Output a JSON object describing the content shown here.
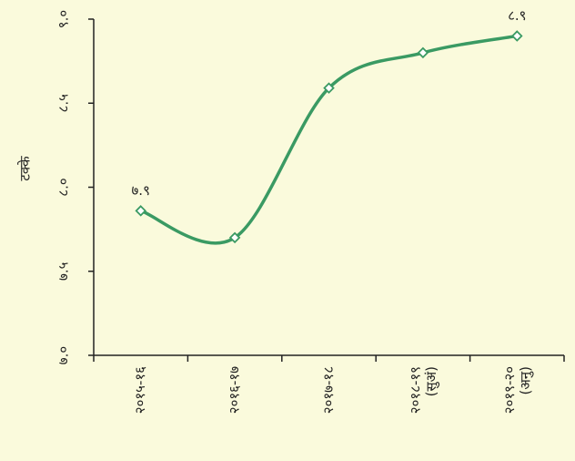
{
  "chart_data": {
    "type": "line",
    "ylabel": "टक्के",
    "categories": [
      "२०१५-१६",
      "२०१६-१७",
      "२०१७-१८",
      "२०१८-१९ (सुअं)",
      "२०१९-२० (अनु)"
    ],
    "series": [
      {
        "name": null,
        "color": "#3a9a63",
        "values": [
          7.86,
          7.7,
          8.59,
          8.8,
          8.9
        ],
        "value_labels": [
          "७.९",
          null,
          null,
          null,
          "८.९"
        ]
      }
    ],
    "ylim": [
      7.0,
      9.0
    ],
    "yticks": [
      {
        "value": 7.0,
        "label": "७.०"
      },
      {
        "value": 7.5,
        "label": "७.५"
      },
      {
        "value": 8.0,
        "label": "८.०"
      },
      {
        "value": 8.5,
        "label": "८.५"
      },
      {
        "value": 9.0,
        "label": "९.०"
      }
    ],
    "grid": false
  }
}
